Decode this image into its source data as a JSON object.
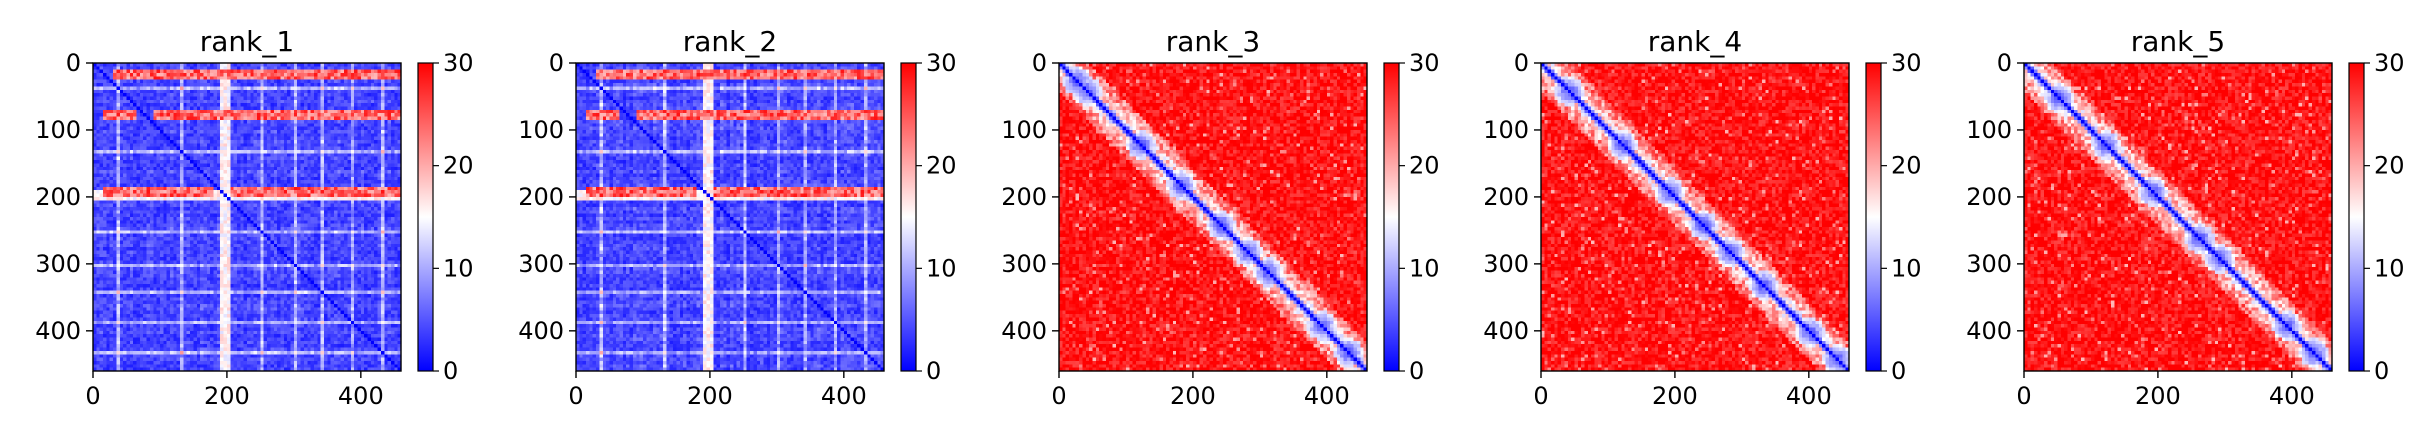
{
  "chart_data": [
    {
      "type": "heatmap",
      "title": "rank_1",
      "xlabel": "",
      "ylabel": "",
      "matrix_size": 460,
      "xlim": [
        0,
        460
      ],
      "ylim": [
        460,
        0
      ],
      "x_ticks": [
        0,
        200,
        400
      ],
      "y_ticks": [
        0,
        100,
        200,
        300,
        400
      ],
      "colorbar": {
        "min": 0,
        "max": 30,
        "ticks": [
          0,
          10,
          20,
          30
        ],
        "colormap": "bwr",
        "colors": [
          "#0000ff",
          "#ffffff",
          "#ff0000"
        ]
      },
      "pattern": "low-error",
      "red_bands": [
        15,
        75,
        190
      ],
      "white_lines": [
        195
      ],
      "white_rows": [
        35,
        130,
        250,
        300,
        340,
        385,
        430
      ]
    },
    {
      "type": "heatmap",
      "title": "rank_2",
      "xlabel": "",
      "ylabel": "",
      "matrix_size": 460,
      "xlim": [
        0,
        460
      ],
      "ylim": [
        460,
        0
      ],
      "x_ticks": [
        0,
        200,
        400
      ],
      "y_ticks": [
        0,
        100,
        200,
        300,
        400
      ],
      "colorbar": {
        "min": 0,
        "max": 30,
        "ticks": [
          0,
          10,
          20,
          30
        ],
        "colormap": "bwr",
        "colors": [
          "#0000ff",
          "#ffffff",
          "#ff0000"
        ]
      },
      "pattern": "low-error",
      "red_bands": [
        15,
        75,
        190
      ],
      "white_lines": [
        195
      ],
      "white_rows": [
        35,
        130,
        250,
        300,
        340,
        385,
        430
      ]
    },
    {
      "type": "heatmap",
      "title": "rank_3",
      "xlabel": "",
      "ylabel": "",
      "matrix_size": 460,
      "xlim": [
        0,
        460
      ],
      "ylim": [
        460,
        0
      ],
      "x_ticks": [
        0,
        200,
        400
      ],
      "y_ticks": [
        0,
        100,
        200,
        300,
        400
      ],
      "colorbar": {
        "min": 0,
        "max": 30,
        "ticks": [
          0,
          10,
          20,
          30
        ],
        "colormap": "bwr",
        "colors": [
          "#0000ff",
          "#ffffff",
          "#ff0000"
        ]
      },
      "pattern": "high-error-diagonal",
      "diagonal_blobs": [
        25,
        40,
        120,
        180,
        240,
        280,
        310,
        390,
        430
      ]
    },
    {
      "type": "heatmap",
      "title": "rank_4",
      "xlabel": "",
      "ylabel": "",
      "matrix_size": 460,
      "xlim": [
        0,
        460
      ],
      "ylim": [
        460,
        0
      ],
      "x_ticks": [
        0,
        200,
        400
      ],
      "y_ticks": [
        0,
        100,
        200,
        300,
        400
      ],
      "colorbar": {
        "min": 0,
        "max": 30,
        "ticks": [
          0,
          10,
          20,
          30
        ],
        "colormap": "bwr",
        "colors": [
          "#0000ff",
          "#ffffff",
          "#ff0000"
        ]
      },
      "pattern": "high-error-diagonal",
      "diagonal_blobs": [
        40,
        120,
        190,
        240,
        280,
        330,
        400,
        440
      ]
    },
    {
      "type": "heatmap",
      "title": "rank_5",
      "xlabel": "",
      "ylabel": "",
      "matrix_size": 460,
      "xlim": [
        0,
        460
      ],
      "ylim": [
        460,
        0
      ],
      "x_ticks": [
        0,
        200,
        400
      ],
      "y_ticks": [
        0,
        100,
        200,
        300,
        400
      ],
      "colorbar": {
        "min": 0,
        "max": 30,
        "ticks": [
          0,
          10,
          20,
          30
        ],
        "colormap": "bwr",
        "colors": [
          "#0000ff",
          "#ffffff",
          "#ff0000"
        ]
      },
      "pattern": "high-error-diagonal",
      "diagonal_blobs": [
        50,
        120,
        190,
        260,
        290,
        390,
        430
      ]
    }
  ]
}
